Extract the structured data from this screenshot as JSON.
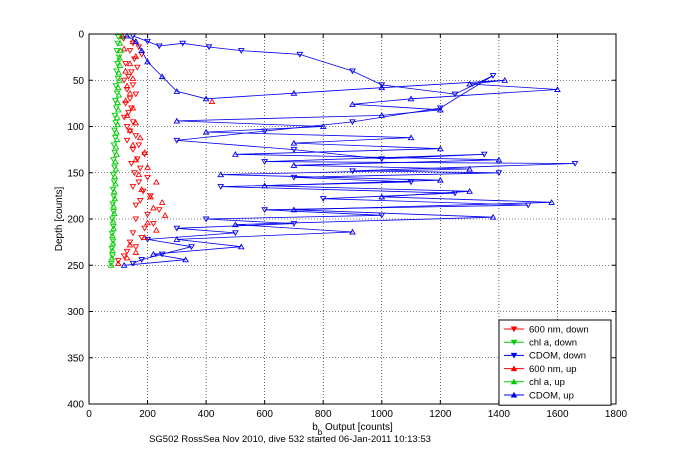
{
  "chart_data": {
    "type": "scatter",
    "title": "",
    "xlabel_main": "b",
    "xlabel_sub": "b",
    "xlabel_rest": " Output [counts]",
    "ylabel": "Depth [counts]",
    "xlim": [
      0,
      1800
    ],
    "ylim": [
      0,
      400
    ],
    "y_reversed": true,
    "grid": true,
    "legend_position": "bottom-right",
    "x_ticks": [
      "0",
      "200",
      "400",
      "600",
      "800",
      "1000",
      "1200",
      "1400",
      "1600",
      "1800"
    ],
    "y_ticks": [
      "0",
      "50",
      "100",
      "150",
      "200",
      "250",
      "300",
      "350",
      "400"
    ],
    "caption": "SG502 RossSea Nov 2010, dive 532 started 06-Jan-2011 10:13:53",
    "series": [
      {
        "name": "600 nm, down",
        "color": "#ff0000",
        "marker": "triangle-down",
        "line": false,
        "points": [
          [
            118,
            5
          ],
          [
            150,
            10
          ],
          [
            170,
            14
          ],
          [
            140,
            18
          ],
          [
            180,
            22
          ],
          [
            155,
            27
          ],
          [
            125,
            32
          ],
          [
            165,
            36
          ],
          [
            145,
            41
          ],
          [
            135,
            46
          ],
          [
            120,
            50
          ],
          [
            150,
            55
          ],
          [
            130,
            60
          ],
          [
            160,
            65
          ],
          [
            140,
            70
          ],
          [
            125,
            75
          ],
          [
            145,
            80
          ],
          [
            135,
            85
          ],
          [
            120,
            90
          ],
          [
            150,
            95
          ],
          [
            130,
            100
          ],
          [
            140,
            105
          ],
          [
            160,
            110
          ],
          [
            130,
            115
          ],
          [
            170,
            120
          ],
          [
            150,
            125
          ],
          [
            190,
            130
          ],
          [
            165,
            135
          ],
          [
            145,
            140
          ],
          [
            175,
            145
          ],
          [
            155,
            150
          ],
          [
            200,
            155
          ],
          [
            170,
            160
          ],
          [
            150,
            165
          ],
          [
            185,
            170
          ],
          [
            210,
            175
          ],
          [
            175,
            180
          ],
          [
            160,
            185
          ],
          [
            240,
            190
          ],
          [
            200,
            195
          ],
          [
            160,
            200
          ],
          [
            220,
            205
          ],
          [
            190,
            210
          ],
          [
            150,
            215
          ],
          [
            180,
            220
          ],
          [
            140,
            225
          ],
          [
            160,
            230
          ],
          [
            130,
            235
          ],
          [
            120,
            240
          ],
          [
            100,
            245
          ]
        ]
      },
      {
        "name": "chl a, down",
        "color": "#00cc00",
        "marker": "triangle-down",
        "line": false,
        "points": [
          [
            100,
            3
          ],
          [
            98,
            10
          ],
          [
            95,
            18
          ],
          [
            102,
            25
          ],
          [
            97,
            32
          ],
          [
            94,
            40
          ],
          [
            99,
            48
          ],
          [
            92,
            56
          ],
          [
            96,
            64
          ],
          [
            90,
            72
          ],
          [
            93,
            80
          ],
          [
            88,
            88
          ],
          [
            91,
            96
          ],
          [
            87,
            104
          ],
          [
            90,
            112
          ],
          [
            85,
            120
          ],
          [
            88,
            128
          ],
          [
            84,
            136
          ],
          [
            87,
            144
          ],
          [
            83,
            152
          ],
          [
            86,
            160
          ],
          [
            82,
            168
          ],
          [
            85,
            176
          ],
          [
            81,
            184
          ],
          [
            84,
            192
          ],
          [
            80,
            200
          ],
          [
            83,
            208
          ],
          [
            79,
            216
          ],
          [
            82,
            224
          ],
          [
            78,
            232
          ],
          [
            80,
            240
          ],
          [
            76,
            248
          ]
        ]
      },
      {
        "name": "CDOM, down",
        "color": "#0000ee",
        "marker": "triangle-down",
        "line": true,
        "points": [
          [
            150,
            2
          ],
          [
            200,
            8
          ],
          [
            240,
            13
          ],
          [
            320,
            10
          ],
          [
            410,
            14
          ],
          [
            520,
            18
          ],
          [
            720,
            22
          ],
          [
            900,
            40
          ],
          [
            1000,
            55
          ],
          [
            1250,
            65
          ],
          [
            1380,
            45
          ],
          [
            1200,
            80
          ],
          [
            900,
            95
          ],
          [
            600,
            105
          ],
          [
            300,
            115
          ],
          [
            700,
            125
          ],
          [
            1000,
            135
          ],
          [
            1350,
            130
          ],
          [
            600,
            138
          ],
          [
            1660,
            140
          ],
          [
            900,
            148
          ],
          [
            1400,
            150
          ],
          [
            700,
            155
          ],
          [
            1100,
            160
          ],
          [
            450,
            165
          ],
          [
            1250,
            172
          ],
          [
            800,
            178
          ],
          [
            1500,
            185
          ],
          [
            600,
            190
          ],
          [
            1000,
            196
          ],
          [
            400,
            200
          ],
          [
            700,
            205
          ],
          [
            300,
            210
          ],
          [
            500,
            215
          ],
          [
            200,
            222
          ],
          [
            350,
            230
          ],
          [
            250,
            238
          ],
          [
            180,
            244
          ],
          [
            150,
            248
          ]
        ]
      },
      {
        "name": "600 nm, up",
        "color": "#ff0000",
        "marker": "triangle-up",
        "line": false,
        "points": [
          [
            100,
            248
          ],
          [
            130,
            242
          ],
          [
            160,
            236
          ],
          [
            140,
            228
          ],
          [
            190,
            220
          ],
          [
            230,
            212
          ],
          [
            200,
            204
          ],
          [
            260,
            196
          ],
          [
            220,
            188
          ],
          [
            250,
            182
          ],
          [
            210,
            176
          ],
          [
            180,
            168
          ],
          [
            230,
            160
          ],
          [
            170,
            152
          ],
          [
            200,
            144
          ],
          [
            160,
            136
          ],
          [
            190,
            128
          ],
          [
            150,
            120
          ],
          [
            175,
            112
          ],
          [
            140,
            104
          ],
          [
            160,
            96
          ],
          [
            130,
            88
          ],
          [
            150,
            80
          ],
          [
            125,
            72
          ],
          [
            420,
            73
          ],
          [
            140,
            64
          ],
          [
            130,
            56
          ],
          [
            150,
            48
          ],
          [
            125,
            40
          ],
          [
            140,
            32
          ],
          [
            160,
            24
          ],
          [
            120,
            16
          ],
          [
            150,
            8
          ],
          [
            115,
            2
          ]
        ]
      },
      {
        "name": "chl a, up",
        "color": "#00cc00",
        "marker": "triangle-up",
        "line": false,
        "points": [
          [
            75,
            250
          ],
          [
            78,
            242
          ],
          [
            80,
            234
          ],
          [
            82,
            226
          ],
          [
            80,
            218
          ],
          [
            84,
            210
          ],
          [
            82,
            202
          ],
          [
            86,
            194
          ],
          [
            84,
            186
          ],
          [
            88,
            178
          ],
          [
            86,
            170
          ],
          [
            90,
            162
          ],
          [
            88,
            154
          ],
          [
            92,
            146
          ],
          [
            90,
            138
          ],
          [
            94,
            130
          ],
          [
            92,
            122
          ],
          [
            96,
            114
          ],
          [
            94,
            106
          ],
          [
            98,
            98
          ],
          [
            96,
            90
          ],
          [
            100,
            82
          ],
          [
            98,
            74
          ],
          [
            102,
            66
          ],
          [
            100,
            58
          ],
          [
            104,
            50
          ],
          [
            102,
            42
          ],
          [
            106,
            34
          ],
          [
            104,
            26
          ],
          [
            108,
            18
          ],
          [
            106,
            10
          ],
          [
            110,
            3
          ]
        ]
      },
      {
        "name": "CDOM, up",
        "color": "#0000ee",
        "marker": "triangle-up",
        "line": true,
        "points": [
          [
            120,
            250
          ],
          [
            330,
            244
          ],
          [
            220,
            238
          ],
          [
            520,
            230
          ],
          [
            300,
            222
          ],
          [
            900,
            214
          ],
          [
            500,
            206
          ],
          [
            1380,
            198
          ],
          [
            700,
            190
          ],
          [
            1580,
            182
          ],
          [
            1000,
            176
          ],
          [
            1300,
            170
          ],
          [
            600,
            164
          ],
          [
            1200,
            158
          ],
          [
            450,
            152
          ],
          [
            1300,
            146
          ],
          [
            700,
            142
          ],
          [
            1400,
            136
          ],
          [
            500,
            130
          ],
          [
            1200,
            124
          ],
          [
            700,
            118
          ],
          [
            1100,
            112
          ],
          [
            400,
            106
          ],
          [
            800,
            100
          ],
          [
            300,
            94
          ],
          [
            1000,
            88
          ],
          [
            1200,
            82
          ],
          [
            900,
            76
          ],
          [
            1100,
            70
          ],
          [
            1600,
            60
          ],
          [
            1300,
            54
          ],
          [
            1420,
            50
          ],
          [
            1000,
            58
          ],
          [
            700,
            64
          ],
          [
            400,
            70
          ],
          [
            300,
            62
          ],
          [
            250,
            46
          ],
          [
            200,
            30
          ],
          [
            180,
            18
          ],
          [
            160,
            8
          ],
          [
            130,
            2
          ]
        ]
      }
    ]
  }
}
